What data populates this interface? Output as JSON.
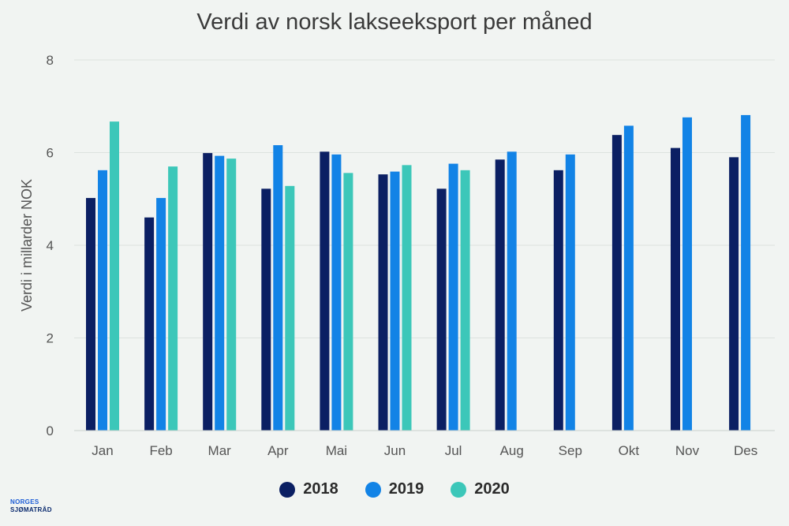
{
  "chart_data": {
    "type": "bar",
    "title": "Verdi av norsk lakseeksport per måned",
    "xlabel": "",
    "ylabel": "Verdi i millarder NOK",
    "ylim": [
      0,
      8
    ],
    "yticks": [
      0,
      2,
      4,
      6,
      8
    ],
    "grid": true,
    "legend_position": "bottom-center",
    "categories": [
      "Jan",
      "Feb",
      "Mar",
      "Apr",
      "Mai",
      "Jun",
      "Jul",
      "Aug",
      "Sep",
      "Okt",
      "Nov",
      "Des"
    ],
    "series": [
      {
        "name": "2018",
        "color": "#0b1f63",
        "values": [
          5.02,
          4.6,
          5.99,
          5.22,
          6.02,
          5.53,
          5.22,
          5.85,
          5.62,
          6.38,
          6.1,
          5.9
        ]
      },
      {
        "name": "2019",
        "color": "#1283e6",
        "values": [
          5.62,
          5.02,
          5.93,
          6.16,
          5.96,
          5.59,
          5.76,
          6.02,
          5.96,
          6.58,
          6.76,
          6.81
        ]
      },
      {
        "name": "2020",
        "color": "#3cc7b9",
        "values": [
          6.67,
          5.7,
          5.87,
          5.28,
          5.56,
          5.73,
          5.62,
          null,
          null,
          null,
          null,
          null
        ]
      }
    ]
  },
  "logo": {
    "line1": "NORGES",
    "line2": "SJØMATRÅD"
  }
}
